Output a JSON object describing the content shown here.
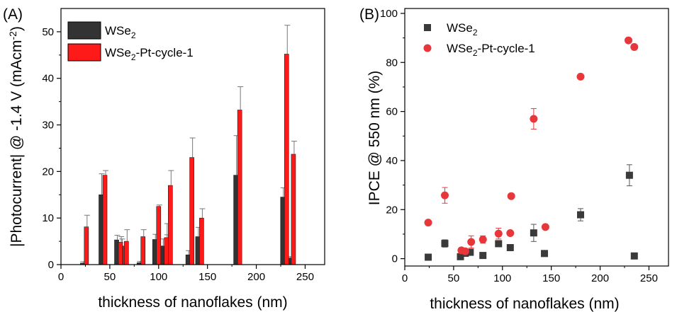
{
  "chart_data": [
    {
      "panel_label": "(A)",
      "type": "bar",
      "xlabel": "thickness of nanoflakes (nm)",
      "ylabel": "|Photocurrent| @ -1.4 V (mAcm",
      "ylabel_sup": "-2",
      "ylabel_end": ")",
      "xlim": [
        0,
        270
      ],
      "ylim": [
        0,
        55
      ],
      "xticks": [
        0,
        50,
        100,
        150,
        200,
        250
      ],
      "yticks": [
        0,
        10,
        20,
        30,
        40,
        50
      ],
      "legend_position": "top-left",
      "series": [
        {
          "name": "WSe",
          "name_sub": "2",
          "color": "#333333",
          "x": [
            22,
            41,
            57,
            62,
            80,
            96,
            104,
            108,
            130,
            140,
            179,
            227,
            234
          ],
          "values": [
            0.3,
            15,
            5.3,
            4,
            0.4,
            5.4,
            4,
            5.2,
            2.1,
            6,
            19.2,
            14.5,
            1.4
          ],
          "errors": [
            0.3,
            4.5,
            1,
            1.5,
            0.3,
            1.1,
            1.5,
            1.2,
            0.9,
            2,
            8.5,
            2,
            0.3
          ]
        },
        {
          "name": "WSe",
          "name_sub": "2",
          "name_suffix": "-Pt-cycle-1",
          "color": "#ff1a1a",
          "x": [
            26,
            45,
            61,
            67,
            84,
            100,
            108,
            112,
            134,
            144,
            183,
            231,
            238
          ],
          "values": [
            8.1,
            19.2,
            4.8,
            5,
            6,
            12.5,
            5.8,
            17,
            23,
            10,
            33.2,
            45.2,
            23.7
          ],
          "errors": [
            2.5,
            1,
            1.2,
            2.5,
            1.5,
            0.3,
            3,
            3.2,
            4.2,
            2,
            5,
            6.2,
            2.8
          ]
        }
      ]
    },
    {
      "panel_label": "(B)",
      "type": "scatter",
      "xlabel": "thickness of nanoflakes (nm)",
      "ylabel": "IPCE @ 550 nm (%)",
      "xlim": [
        0,
        270
      ],
      "ylim": [
        -3,
        102
      ],
      "xticks": [
        0,
        50,
        100,
        150,
        200,
        250
      ],
      "yticks": [
        0,
        20,
        40,
        60,
        80,
        100
      ],
      "legend_position": "top-left",
      "series": [
        {
          "name": "WSe",
          "name_sub": "2",
          "marker": "square",
          "color": "#3a3a3a",
          "x": [
            24,
            41,
            57,
            62,
            67,
            80,
            96,
            108,
            132,
            143,
            180,
            230,
            235
          ],
          "y": [
            0.6,
            6.2,
            0.8,
            2.2,
            2.6,
            1.3,
            6.1,
            4.5,
            10.5,
            2.1,
            17.9,
            34,
            1.1
          ],
          "errors": [
            0.4,
            1.5,
            0.5,
            0.5,
            1,
            0.5,
            0.8,
            1.2,
            3.5,
            0.3,
            2.5,
            4.3,
            0.3
          ]
        },
        {
          "name": "WSe",
          "name_sub": "2",
          "name_suffix": "-Pt-cycle-1",
          "marker": "circle",
          "color": "#e8373a",
          "x": [
            24,
            41,
            58,
            62,
            68,
            80,
            96,
            108,
            109,
            132,
            144,
            180,
            229,
            235
          ],
          "y": [
            14.7,
            25.8,
            3.4,
            3,
            6.8,
            7.8,
            10.2,
            10.4,
            25.5,
            57,
            12.9,
            74.2,
            89,
            86.3
          ],
          "errors": [
            0.5,
            3.2,
            0.5,
            0.3,
            2.5,
            1.5,
            2.2,
            0.8,
            0.5,
            4.2,
            0.5,
            0.5,
            0.5,
            0.5
          ]
        }
      ]
    }
  ]
}
